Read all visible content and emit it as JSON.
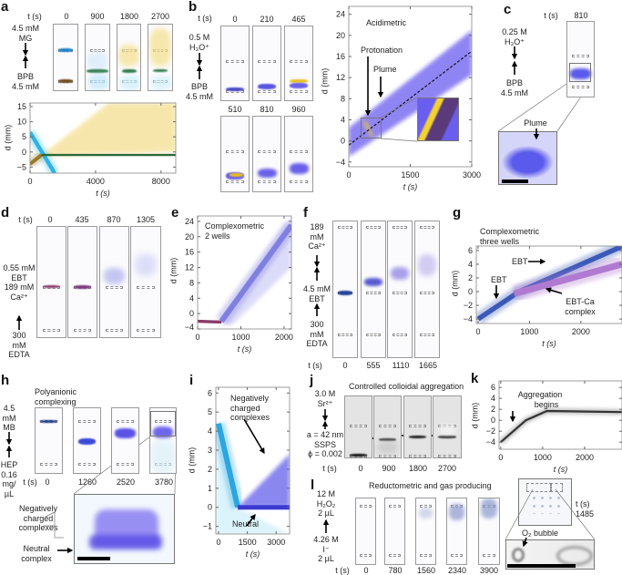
{
  "panel_labels": [
    "a",
    "b",
    "c",
    "d",
    "e",
    "f",
    "g",
    "h",
    "i",
    "j",
    "k",
    "l"
  ],
  "common": {
    "t_label": "t (s)",
    "d_label": "d (mm)"
  },
  "a": {
    "times": [
      "0",
      "900",
      "1800",
      "2700"
    ],
    "top_reagent": [
      "4.5 mM",
      "MG"
    ],
    "bottom_reagent": [
      "BPB",
      "4.5 mM"
    ]
  },
  "b": {
    "times_top": [
      "0",
      "210",
      "465"
    ],
    "times_bottom": [
      "510",
      "810",
      "960"
    ],
    "top_reagent": [
      "0.5 M",
      "H₃O⁺"
    ],
    "bottom_reagent": [
      "BPB",
      "4.5 mM"
    ],
    "title": "Acidimetric",
    "protonation": "Protonation",
    "plume": "Plume"
  },
  "c": {
    "time": "810",
    "top_reagent": [
      "0.25 M",
      "H₃O⁺"
    ],
    "bottom_reagent": [
      "BPB",
      "4.5 mM"
    ],
    "plume": "Plume"
  },
  "d": {
    "times": [
      "0",
      "435",
      "870",
      "1305"
    ],
    "mid_reagent": [
      "0.55 mM",
      "EBT",
      "189 mM",
      "Ca²⁺"
    ],
    "bottom_reagent": [
      "300",
      "mM",
      "EDTA"
    ]
  },
  "e": {
    "title": [
      "Complexometric",
      "2 wells"
    ]
  },
  "f": {
    "times": [
      "0",
      "555",
      "1110",
      "1665"
    ],
    "top_reagent": [
      "189",
      "mM",
      "Ca²⁺"
    ],
    "mid_reagent": [
      "4.5 mM",
      "EBT"
    ],
    "bottom_reagent": [
      "300",
      "mM",
      "EDTA"
    ]
  },
  "g": {
    "title": [
      "Complexometric",
      "three wells"
    ],
    "ebt_upper": "EBT",
    "ebt_lower": "EBT",
    "complex": [
      "EBT-Ca",
      "complex"
    ]
  },
  "h": {
    "title": [
      "Polyanionic",
      "complexing"
    ],
    "times": [
      "0",
      "1260",
      "2520",
      "3780"
    ],
    "top_reagent": [
      "4.5",
      "mM",
      "MB"
    ],
    "bottom_reagent": [
      "HEP",
      "0.16",
      "mg/",
      "µL"
    ],
    "negative": [
      "Negatively",
      "charged",
      "complexes"
    ],
    "neutral": [
      "Neutral",
      "complex"
    ]
  },
  "i": {
    "negative": [
      "Negatively",
      "charged",
      "complexes"
    ],
    "neutral": "Neutral"
  },
  "j": {
    "title": "Controlled colloidal aggregation",
    "times": [
      "0",
      "900",
      "1800",
      "2700"
    ],
    "top_reagent": [
      "3.0 M",
      "Sr²⁺"
    ],
    "bottom_reagent": [
      "a = 42 nm",
      "SSPS",
      "ϕ = 0.002"
    ]
  },
  "k": {
    "annotation": [
      "Aggregation",
      "begins"
    ]
  },
  "l": {
    "title": "Reductometric and gas producing",
    "times": [
      "0",
      "780",
      "1560",
      "2340",
      "3900"
    ],
    "top_reagent": [
      "12 M",
      "H₂O₂",
      "2 µL"
    ],
    "bottom_reagent": [
      "4.26 M",
      "I⁻",
      "2 µL"
    ],
    "inset_time": "1485",
    "bubble": "O₂ bubble"
  },
  "chart_data": [
    {
      "panel": "a",
      "type": "heatmap",
      "xlabel": "t (s)",
      "ylabel": "d (mm)",
      "xlim": [
        0,
        8900
      ],
      "ylim": [
        -7,
        16.2
      ],
      "xticks": [
        0,
        4000,
        8000
      ],
      "yticks": [
        -5,
        0,
        5,
        10,
        15
      ],
      "regions": [
        {
          "name": "BPB yellow spread",
          "color": "#f2d36b",
          "opacity": 0.55,
          "points": [
            [
              700,
              -1
            ],
            [
              4800,
              16.2
            ],
            [
              8900,
              16.2
            ],
            [
              8900,
              0
            ],
            [
              700,
              -1.5
            ]
          ]
        }
      ],
      "series": [
        {
          "name": "MG",
          "color": "#2bb3e6",
          "spread": 1.6,
          "points": [
            [
              0,
              6.5
            ],
            [
              1500,
              -7
            ]
          ]
        },
        {
          "name": "BPB",
          "color": "#9a7a2a",
          "spread": 1.5,
          "points": [
            [
              0,
              -4
            ],
            [
              700,
              -1
            ]
          ]
        },
        {
          "name": "complex",
          "color": "#2a6a3a",
          "spread": 0.9,
          "points": [
            [
              700,
              -1
            ],
            [
              8900,
              -1
            ]
          ]
        }
      ]
    },
    {
      "panel": "b",
      "type": "heatmap",
      "xlabel": "t (s)",
      "ylabel": "d (mm)",
      "xlim": [
        0,
        3000
      ],
      "ylim": [
        -4.9,
        25.5
      ],
      "xticks": [
        0,
        1500,
        3000
      ],
      "yticks": [
        -4,
        0,
        4,
        8,
        12,
        16,
        20,
        24
      ],
      "regions": [
        {
          "name": "BPB plume",
          "color": "#6a5cf0",
          "opacity": 0.75,
          "points": [
            [
              0,
              -3
            ],
            [
              0,
              2.5
            ],
            [
              3000,
              21
            ],
            [
              3000,
              12.5
            ]
          ]
        },
        {
          "name": "protonation",
          "color": "#f0d020",
          "opacity": 0.9,
          "points": [
            [
              350,
              3.5
            ],
            [
              420,
              3.8
            ],
            [
              600,
              0.8
            ],
            [
              560,
              0.6
            ]
          ]
        }
      ],
      "series": [
        {
          "name": "fit",
          "color": "#111",
          "spread": 0,
          "dashed": true,
          "points": [
            [
              0,
              -0.8
            ],
            [
              3000,
              17
            ]
          ]
        }
      ]
    },
    {
      "panel": "e",
      "type": "heatmap",
      "xlabel": "t (s)",
      "ylabel": "d (mm)",
      "xlim": [
        0,
        2170
      ],
      "ylim": [
        -4,
        25.4
      ],
      "xticks": [
        0,
        1000,
        2000
      ],
      "yticks": [
        -4,
        0,
        4,
        8,
        12,
        16,
        20,
        24
      ],
      "regions": [
        {
          "name": "EBT spread",
          "color": "#9c9cf0",
          "opacity": 0.35,
          "points": [
            [
              550,
              -2.5
            ],
            [
              2170,
              25.4
            ],
            [
              2170,
              12
            ],
            [
              800,
              -3
            ]
          ]
        }
      ],
      "series": [
        {
          "name": "EBT-Ca",
          "color": "#8a3a6a",
          "spread": 1.0,
          "points": [
            [
              0,
              -2
            ],
            [
              550,
              -2.2
            ]
          ]
        },
        {
          "name": "EBT",
          "color": "#8080e0",
          "spread": 1.8,
          "points": [
            [
              550,
              -2
            ],
            [
              2170,
              23
            ]
          ]
        }
      ]
    },
    {
      "panel": "g",
      "type": "heatmap",
      "xlabel": "t (s)",
      "ylabel": "d (mm)",
      "xlim": [
        -35,
        2800
      ],
      "ylim": [
        -4.65,
        6.65
      ],
      "xticks": [
        0,
        1000,
        2000
      ],
      "yticks": [
        -4,
        -2,
        0,
        2,
        4,
        6
      ],
      "regions": [],
      "series": [
        {
          "name": "EBT",
          "color": "#3a5ab8",
          "spread": 0.9,
          "points": [
            [
              0,
              -4
            ],
            [
              800,
              0
            ],
            [
              2800,
              6.6
            ]
          ]
        },
        {
          "name": "EBT-Ca complex",
          "color": "#b07ad0",
          "spread": 1.2,
          "points": [
            [
              700,
              -0.3
            ],
            [
              2800,
              4
            ]
          ]
        }
      ]
    },
    {
      "panel": "i",
      "type": "heatmap",
      "xlabel": "t (s)",
      "ylabel": "d (mm)",
      "xlim": [
        -140,
        3700
      ],
      "ylim": [
        -1.4,
        6.3
      ],
      "xticks": [
        0,
        1500,
        3000
      ],
      "yticks": [
        -1,
        0,
        1,
        2,
        3,
        4,
        5,
        6
      ],
      "regions": [
        {
          "name": "Negatively charged complexes",
          "color": "#5a55e8",
          "opacity": 0.7,
          "points": [
            [
              1000,
              0
            ],
            [
              3700,
              2.8
            ],
            [
              3700,
              0
            ]
          ]
        },
        {
          "name": "cyan haze",
          "color": "#b8e8f8",
          "opacity": 0.5,
          "points": [
            [
              -140,
              4.5
            ],
            [
              1000,
              0
            ],
            [
              3700,
              -1.4
            ],
            [
              -140,
              -1.4
            ]
          ]
        }
      ],
      "series": [
        {
          "name": "MB",
          "color": "#2aa6e0",
          "spread": 0.35,
          "points": [
            [
              0,
              4.4
            ],
            [
              1000,
              0
            ]
          ]
        },
        {
          "name": "Neutral",
          "color": "#3a3ad0",
          "spread": 0.3,
          "points": [
            [
              1000,
              0
            ],
            [
              3700,
              0
            ]
          ]
        }
      ]
    },
    {
      "panel": "k",
      "type": "heatmap",
      "xlabel": "t (s)",
      "ylabel": "d (mm)",
      "xlim": [
        -40,
        2890
      ],
      "ylim": [
        -5.3,
        7.2
      ],
      "xticks": [
        0,
        1000,
        2000
      ],
      "yticks": [
        -4,
        -2,
        0,
        2,
        4,
        6
      ],
      "regions": [],
      "series": [
        {
          "name": "SSPS colloid",
          "color": "#333",
          "spread": 0.45,
          "points": [
            [
              0,
              -4
            ],
            [
              600,
              0
            ],
            [
              1100,
              1.7
            ],
            [
              2890,
              1.5
            ]
          ]
        }
      ]
    }
  ]
}
